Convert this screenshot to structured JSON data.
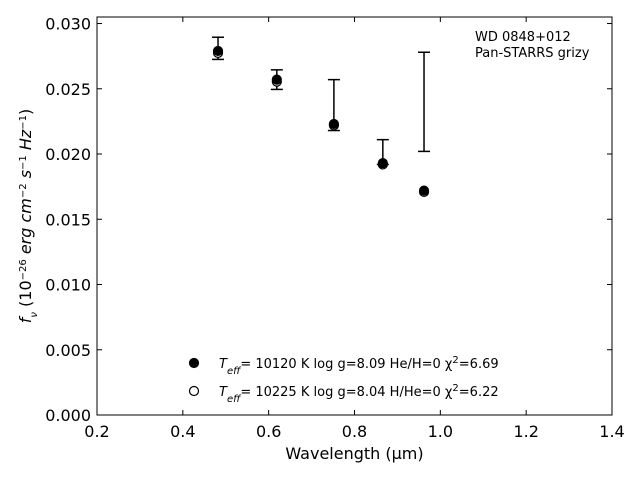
{
  "chart_data": {
    "type": "scatter",
    "xlabel": "Wavelength (μm)",
    "ylabel": {
      "parts": [
        "f",
        "ν",
        " (10",
        "−26",
        " erg cm",
        "−2",
        " s",
        "−1",
        " Hz",
        "−1",
        ")"
      ]
    },
    "xlim": [
      0.2,
      1.4
    ],
    "ylim": [
      0.0,
      0.0305
    ],
    "x_ticks": [
      0.2,
      0.4,
      0.6,
      0.8,
      1.0,
      1.2,
      1.4
    ],
    "x_tick_labels": [
      "0.2",
      "0.4",
      "0.6",
      "0.8",
      "1.0",
      "1.2",
      "1.4"
    ],
    "y_ticks": [
      0.0,
      0.005,
      0.01,
      0.015,
      0.02,
      0.025,
      0.03
    ],
    "y_tick_labels": [
      "0.000",
      "0.005",
      "0.010",
      "0.015",
      "0.020",
      "0.025",
      "0.030"
    ],
    "grid": false,
    "legend_placement": "bottom-center",
    "annotation": [
      "WD 0848+012",
      "Pan-STARRS grizy"
    ],
    "observed": {
      "x": [
        0.482,
        0.619,
        0.752,
        0.866,
        0.962
      ],
      "y": [
        0.0281,
        0.0257,
        0.02375,
        0.02015,
        0.024
      ],
      "yerr": [
        0.00085,
        0.00075,
        0.00195,
        0.00095,
        0.0038
      ]
    },
    "series": [
      {
        "marker": "filled-circle",
        "label_parts": [
          "T",
          "eff",
          "= 10120 K  log g=8.09  He/H=0  χ",
          "2",
          "=6.69"
        ],
        "x": [
          0.482,
          0.619,
          0.752,
          0.866,
          0.962
        ],
        "y": [
          0.0279,
          0.0257,
          0.0223,
          0.0193,
          0.0172
        ]
      },
      {
        "marker": "open-circle",
        "label_parts": [
          "T",
          "eff",
          "= 10225 K  log g=8.04  H/He=0  χ",
          "2",
          "=6.22"
        ],
        "x": [
          0.482,
          0.619,
          0.752,
          0.866,
          0.962
        ],
        "y": [
          0.02775,
          0.02555,
          0.0222,
          0.0192,
          0.0171
        ]
      }
    ]
  }
}
